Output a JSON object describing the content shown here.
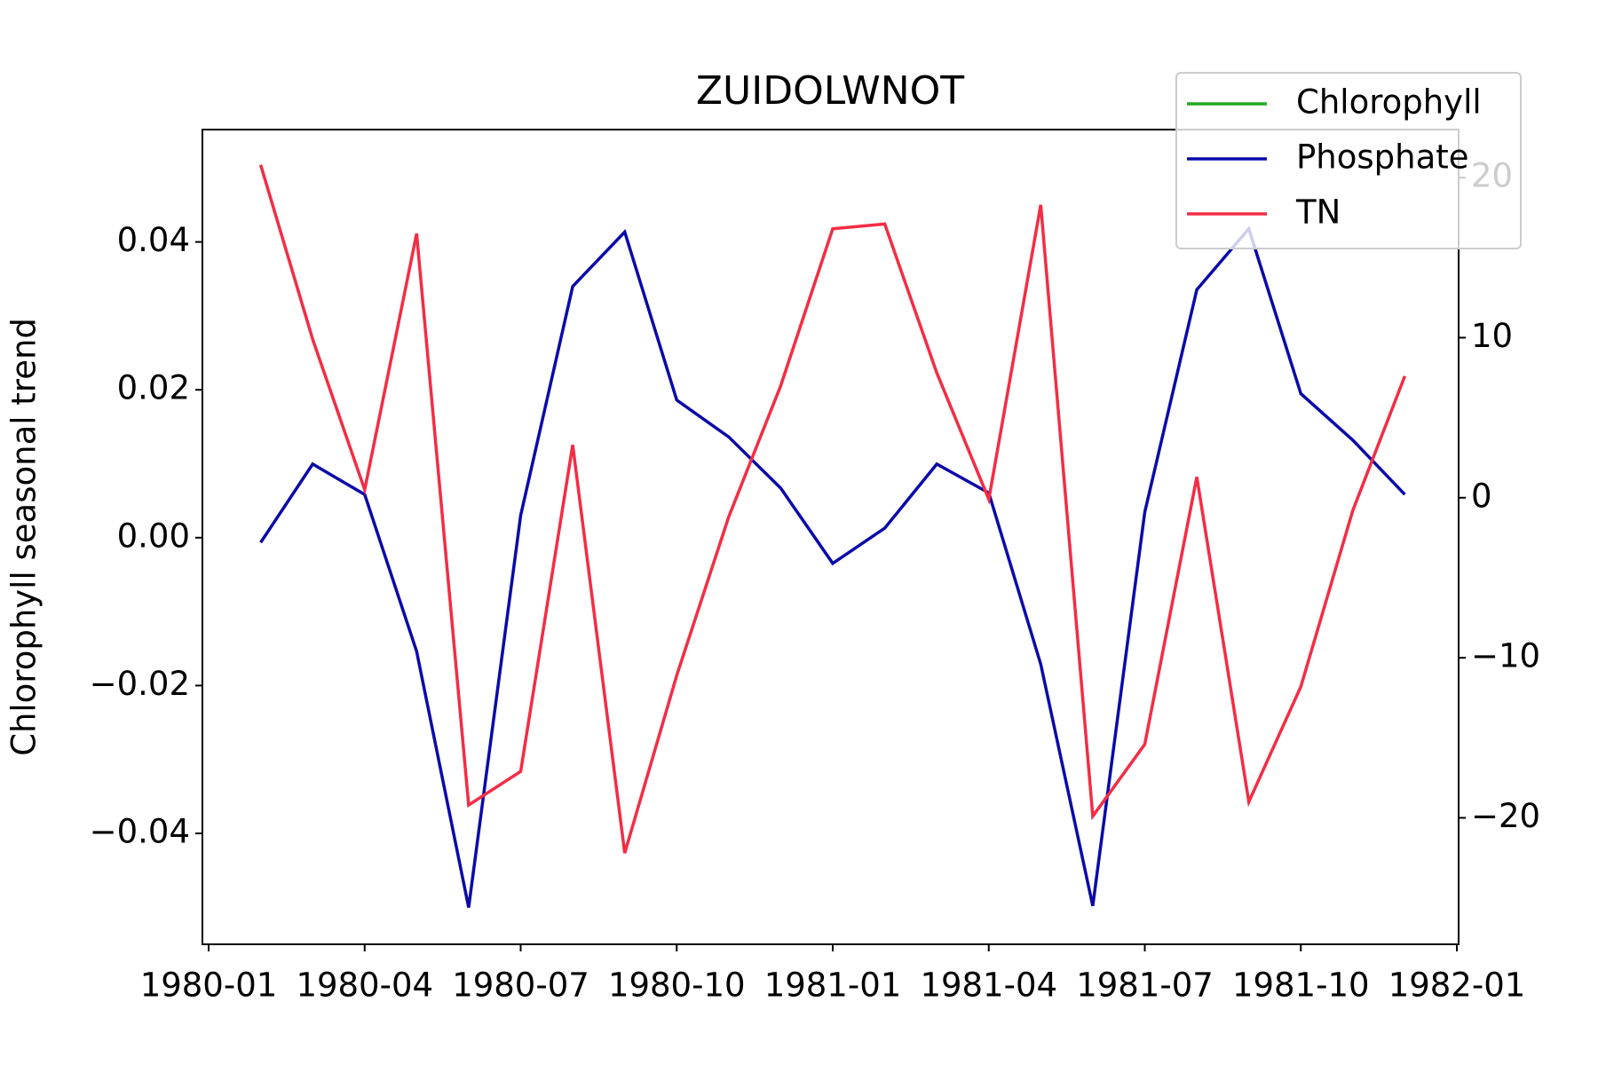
{
  "chart_data": {
    "type": "line",
    "title": "ZUIDOLWNOT",
    "ylabel": "Chlorophyll seasonal trend",
    "x": [
      "1980-02",
      "1980-03",
      "1980-04",
      "1980-05",
      "1980-06",
      "1980-07",
      "1980-08",
      "1980-09",
      "1980-10",
      "1980-11",
      "1980-12",
      "1981-01",
      "1981-02",
      "1981-03",
      "1981-04",
      "1981-05",
      "1981-06",
      "1981-07",
      "1981-08",
      "1981-09",
      "1981-10",
      "1981-11",
      "1981-12"
    ],
    "xlim": [
      "1980-01",
      "1982-01"
    ],
    "xticks": [
      "1980-01",
      "1980-04",
      "1980-07",
      "1980-10",
      "1981-01",
      "1981-04",
      "1981-07",
      "1981-10",
      "1982-01"
    ],
    "ylim": [
      -0.055,
      0.0552
    ],
    "yticks": [
      {
        "value": -0.04,
        "label": "−0.04"
      },
      {
        "value": -0.02,
        "label": "−0.02"
      },
      {
        "value": 0,
        "label": "0.00"
      },
      {
        "value": 0.02,
        "label": "0.02"
      },
      {
        "value": 0.04,
        "label": "0.04"
      }
    ],
    "y2lim": [
      -27.9,
      23.0
    ],
    "y2ticks": [
      {
        "value": -20,
        "label": "−20"
      },
      {
        "value": -10,
        "label": "−10"
      },
      0,
      10,
      20
    ],
    "legend": "upper right",
    "series": [
      {
        "name": "Chlorophyll",
        "color": "#22aa22",
        "values": [
          null,
          null,
          null,
          null,
          null,
          null,
          null,
          null,
          null,
          null,
          null,
          null,
          null,
          null,
          null,
          null,
          null,
          null,
          null,
          null,
          null,
          null,
          null
        ]
      },
      {
        "name": "Phosphate",
        "color": "#0a0aaa",
        "axis": "y2",
        "values": [
          -2.8,
          2.1,
          0.2,
          -9.6,
          -25.6,
          -1.1,
          13.2,
          16.6,
          6.1,
          3.8,
          0.6,
          -4.1,
          -1.9,
          2.1,
          0.3,
          -10.4,
          -25.5,
          -0.9,
          13.0,
          16.8,
          6.5,
          3.6,
          0.2
        ]
      },
      {
        "name": "TN",
        "color": "#f42c44",
        "axis": "y2",
        "values": [
          20.8,
          9.9,
          0.5,
          16.5,
          -19.2,
          -17.1,
          3.3,
          -22.2,
          -11.1,
          -1.2,
          7.0,
          16.8,
          17.1,
          7.8,
          -0.1,
          18.3,
          -19.9,
          -15.4,
          1.3,
          -19.0,
          -11.8,
          -0.8,
          7.6
        ]
      }
    ]
  }
}
